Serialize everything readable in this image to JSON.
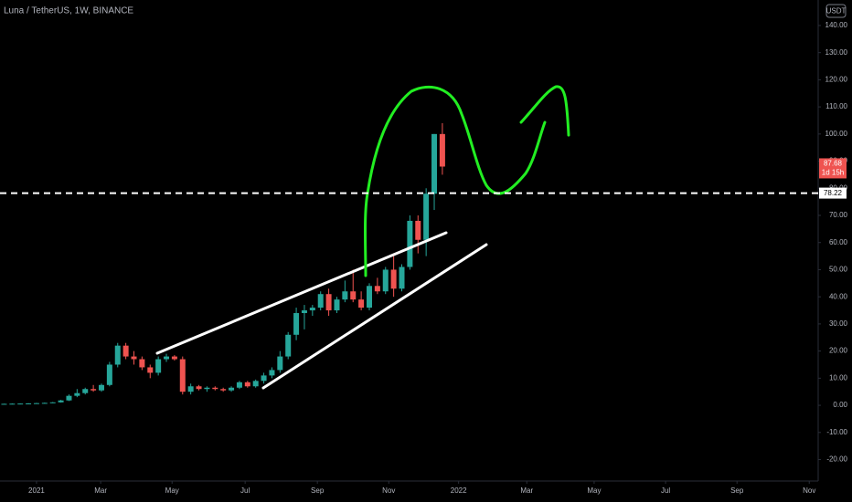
{
  "chart_data": {
    "type": "candlestick",
    "title": "Luna / TetherUS, 1W, BINANCE",
    "currency": "USDT",
    "x": [
      -4,
      -3,
      -2,
      -1,
      0,
      1,
      2,
      3,
      4,
      5,
      6,
      7,
      8,
      9,
      10,
      11,
      12,
      13,
      14,
      15,
      16,
      17,
      18,
      19,
      20,
      21,
      22,
      23,
      24,
      25,
      26,
      27,
      28,
      29,
      30,
      31,
      32,
      33,
      34,
      35,
      36,
      37,
      38,
      39,
      40,
      41,
      42,
      43,
      44,
      45,
      46,
      47,
      48,
      49,
      50
    ],
    "open": [
      0.5,
      0.55,
      0.6,
      0.65,
      0.7,
      0.8,
      0.9,
      1.1,
      1.8,
      3.5,
      4.5,
      6,
      5.5,
      7.5,
      15,
      22,
      18,
      17,
      14,
      12,
      17,
      18,
      17,
      5,
      7,
      6,
      6.5,
      6,
      5.5,
      6.5,
      8.5,
      7,
      9,
      11,
      13,
      18,
      26,
      34,
      35,
      36,
      41,
      35,
      39,
      42,
      39,
      36,
      44,
      42,
      50,
      43,
      51,
      68,
      61,
      78,
      100
    ],
    "high": [
      0.6,
      0.7,
      0.7,
      0.8,
      0.9,
      1,
      1.2,
      2,
      4,
      6,
      6.5,
      7.5,
      8,
      16,
      23,
      23,
      20,
      18,
      15,
      18,
      19,
      18.5,
      18,
      8,
      7.5,
      7,
      7,
      6.5,
      7,
      9,
      9,
      9.5,
      12,
      14,
      20,
      27,
      36,
      37,
      37,
      42,
      43,
      40,
      46,
      50,
      42,
      45,
      47,
      51,
      55,
      52,
      70,
      70,
      80,
      100,
      104
    ],
    "low": [
      0.4,
      0.5,
      0.5,
      0.6,
      0.6,
      0.7,
      0.8,
      1,
      1.6,
      3,
      4,
      5,
      5,
      7,
      14,
      17,
      15,
      13,
      10,
      11,
      16,
      16.5,
      4,
      4,
      5.5,
      5,
      5.5,
      5,
      5,
      6,
      6.5,
      6.5,
      8,
      10,
      12,
      17,
      24,
      28,
      33,
      35,
      33,
      34,
      38,
      38,
      35,
      35,
      41,
      41,
      40,
      42,
      50,
      56,
      55,
      72,
      85
    ],
    "close": [
      0.55,
      0.6,
      0.65,
      0.7,
      0.8,
      0.9,
      1.1,
      1.8,
      3.5,
      4.5,
      6,
      5.5,
      7.5,
      15,
      22,
      18,
      17,
      14,
      12,
      17,
      18,
      17,
      5,
      7,
      6,
      6.5,
      6,
      5.5,
      6.5,
      8.5,
      7,
      9,
      11,
      13,
      18,
      26,
      34,
      35,
      36,
      41,
      35,
      39,
      42,
      39,
      36,
      44,
      42,
      50,
      43,
      51,
      68,
      61,
      78,
      100,
      88
    ],
    "up_color": "#26a69a",
    "down_color": "#ef5350",
    "xlim": [
      -4.5,
      96.3
    ],
    "ylim": [
      -27.9,
      149.4
    ],
    "xticks": [
      {
        "value": 0,
        "label": "2021"
      },
      {
        "value": 7.9,
        "label": "Mar"
      },
      {
        "value": 16.7,
        "label": "May"
      },
      {
        "value": 25.7,
        "label": "Jul"
      },
      {
        "value": 34.6,
        "label": "Sep"
      },
      {
        "value": 43.4,
        "label": "Nov"
      },
      {
        "value": 52,
        "label": "2022"
      },
      {
        "value": 60.4,
        "label": "Mar"
      },
      {
        "value": 68.7,
        "label": "May"
      },
      {
        "value": 77.5,
        "label": "Jul"
      },
      {
        "value": 86.3,
        "label": "Sep"
      },
      {
        "value": 95.2,
        "label": "Nov"
      }
    ],
    "yticks": [
      {
        "value": 140,
        "label": "140.00"
      },
      {
        "value": 130,
        "label": "130.00"
      },
      {
        "value": 120,
        "label": "120.00"
      },
      {
        "value": 110,
        "label": "110.00"
      },
      {
        "value": 100,
        "label": "100.00"
      },
      {
        "value": 90,
        "label": "90.00"
      },
      {
        "value": 80,
        "label": "80.00"
      },
      {
        "value": 70,
        "label": "70.00"
      },
      {
        "value": 60,
        "label": "60.00"
      },
      {
        "value": 50,
        "label": "50.00"
      },
      {
        "value": 40,
        "label": "40.00"
      },
      {
        "value": 30,
        "label": "30.00"
      },
      {
        "value": 20,
        "label": "20.00"
      },
      {
        "value": 10,
        "label": "10.00"
      },
      {
        "value": 0,
        "label": "0.00"
      },
      {
        "value": -10,
        "label": "-10.00"
      },
      {
        "value": -20,
        "label": "-20.00"
      }
    ],
    "last_price": 87.68,
    "countdown": "1d 15h",
    "horizontal_line": 78.22,
    "grid": false
  }
}
